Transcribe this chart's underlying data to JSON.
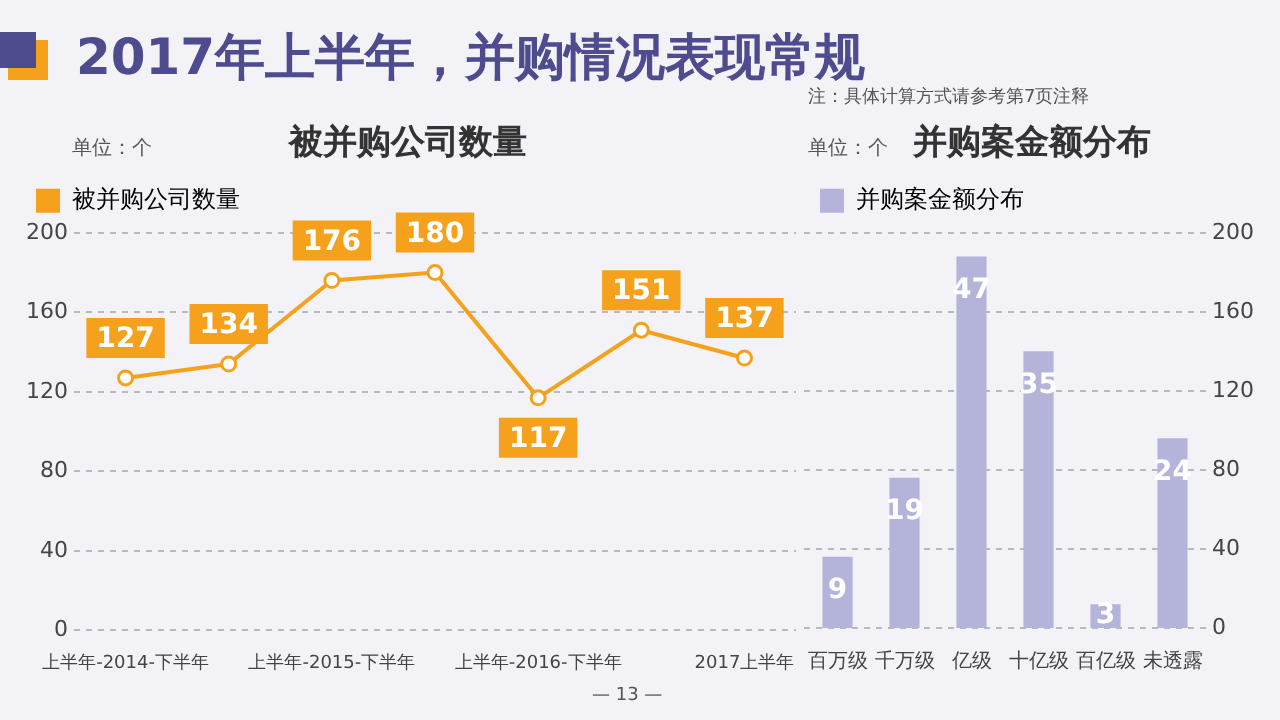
{
  "chart_data": [
    {
      "type": "line",
      "title": "被并购公司数量",
      "annotations": [
        "2017年上半年，并购情况表现常规",
        "单位：个",
        "— 13 —"
      ],
      "categories": [
        "上半年-2014-下半年",
        null,
        "上半年-2015-下半年",
        null,
        "上半年-2016-下半年",
        null,
        "2017上半年"
      ],
      "series": [
        {
          "name": "被并购公司数量",
          "color": "#f5a11c",
          "values": [
            127,
            134,
            176,
            180,
            117,
            151,
            137
          ]
        }
      ],
      "ylim": [
        0,
        200
      ],
      "yticks": [
        0,
        40,
        80,
        120,
        160,
        200
      ],
      "grid": "y",
      "legend": "top left",
      "marker": "circle",
      "data_labels": true
    },
    {
      "type": "bar",
      "title": "并购案金额分布",
      "annotations": [
        "注：具体计算方式请参考第7页注释",
        "单位：个"
      ],
      "categories": [
        "百万级",
        "千万级",
        "亿级",
        "十亿级",
        "百亿级",
        "未透露"
      ],
      "series": [
        {
          "name": "并购案金额分布",
          "color": "#b4b3d9",
          "values": [
            9,
            19,
            47,
            35,
            3,
            24
          ]
        }
      ],
      "ylim": [
        0,
        50
      ],
      "y2lim": [
        0,
        200
      ],
      "y2ticks": [
        0,
        40,
        80,
        120,
        160,
        200
      ],
      "grid": "y",
      "legend": "top left",
      "data_labels": true
    }
  ]
}
